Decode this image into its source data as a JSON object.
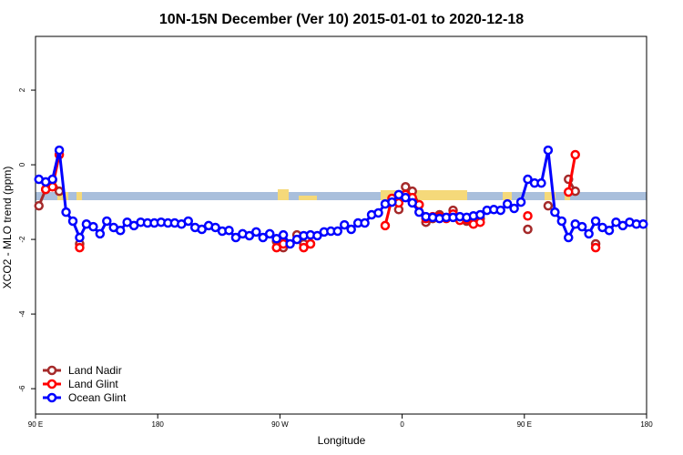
{
  "chart_data": {
    "type": "line",
    "title": "10N-15N December (Ver 10)   2015-01-01 to 2020-12-18",
    "x_label": "Longitude",
    "y_label": "XCO2 - MLO trend (ppm)",
    "x": [
      92.5,
      97.5,
      102.5,
      107.5,
      112.5,
      117.5,
      122.5,
      127.5,
      132.5,
      137.5,
      142.5,
      147.5,
      152.5,
      157.5,
      162.5,
      167.5,
      172.5,
      177.5,
      182.5,
      187.5,
      192.5,
      197.5,
      202.5,
      207.5,
      212.5,
      217.5,
      222.5,
      227.5,
      232.5,
      237.5,
      242.5,
      247.5,
      252.5,
      257.5,
      262.5,
      267.5,
      272.5,
      277.5,
      282.5,
      287.5,
      292.5,
      297.5,
      302.5,
      307.5,
      312.5,
      317.5,
      322.5,
      327.5,
      332.5,
      337.5,
      342.5,
      347.5,
      352.5,
      357.5,
      362.5,
      367.5,
      372.5,
      377.5,
      382.5,
      387.5,
      392.5,
      397.5,
      402.5,
      407.5,
      412.5,
      417.5,
      422.5,
      427.5,
      432.5,
      437.5,
      442.5,
      447.5,
      452.5,
      457.5,
      462.5,
      467.5,
      472.5,
      477.5,
      482.5,
      487.5,
      492.5,
      497.5,
      502.5,
      507.5,
      512.5,
      517.5,
      522.5,
      527.5,
      532.5,
      537.5
    ],
    "series": [
      {
        "name": "Land Nadir",
        "color": "#a52a2a",
        "values": [
          -1.1,
          -0.66,
          -0.41,
          -0.71,
          null,
          null,
          -2.12,
          null,
          null,
          null,
          null,
          null,
          null,
          null,
          null,
          null,
          null,
          null,
          null,
          null,
          null,
          null,
          null,
          null,
          null,
          null,
          null,
          null,
          null,
          null,
          null,
          null,
          null,
          null,
          null,
          -2.05,
          -2.22,
          null,
          -1.88,
          -2.12,
          -2.12,
          null,
          null,
          null,
          null,
          null,
          null,
          null,
          null,
          null,
          null,
          null,
          null,
          -1.2,
          -0.59,
          -0.71,
          -1.07,
          -1.54,
          -1.44,
          -1.34,
          null,
          -1.22,
          null,
          -1.51,
          null,
          -1.44,
          null,
          null,
          null,
          null,
          null,
          null,
          -1.73,
          null,
          null,
          -1.1,
          null,
          null,
          -0.39,
          -0.71,
          null,
          null,
          -2.12,
          null,
          null,
          null,
          null,
          null,
          null,
          null
        ]
      },
      {
        "name": "Land Glint",
        "color": "#ff0000",
        "values": [
          null,
          -0.66,
          -0.59,
          0.27,
          null,
          null,
          -2.22,
          null,
          null,
          null,
          null,
          null,
          null,
          null,
          null,
          null,
          null,
          null,
          null,
          null,
          null,
          null,
          null,
          null,
          null,
          null,
          null,
          null,
          null,
          null,
          null,
          null,
          null,
          null,
          null,
          -2.22,
          -2.12,
          null,
          null,
          -2.22,
          -2.12,
          null,
          null,
          null,
          null,
          null,
          null,
          null,
          null,
          null,
          null,
          -1.63,
          -0.9,
          -1.02,
          -0.8,
          -0.88,
          -1.07,
          -1.44,
          -1.39,
          -1.39,
          -1.44,
          -1.32,
          -1.49,
          -1.46,
          -1.59,
          -1.54,
          null,
          null,
          null,
          null,
          null,
          null,
          -1.37,
          null,
          null,
          null,
          null,
          null,
          -0.73,
          0.27,
          null,
          null,
          -2.22,
          null,
          null,
          null,
          null,
          null,
          null,
          null
        ]
      },
      {
        "name": "Ocean Glint",
        "color": "#0000ff",
        "values": [
          -0.39,
          -0.46,
          -0.39,
          0.39,
          -1.27,
          -1.51,
          -1.95,
          -1.59,
          -1.66,
          -1.85,
          -1.51,
          -1.68,
          -1.76,
          -1.54,
          -1.63,
          -1.54,
          -1.56,
          -1.56,
          -1.54,
          -1.56,
          -1.56,
          -1.59,
          -1.51,
          -1.68,
          -1.73,
          -1.63,
          -1.68,
          -1.78,
          -1.76,
          -1.95,
          -1.85,
          -1.9,
          -1.8,
          -1.95,
          -1.85,
          -1.98,
          -1.88,
          -2.12,
          -2.0,
          -1.9,
          -1.88,
          -1.9,
          -1.8,
          -1.78,
          -1.78,
          -1.61,
          -1.73,
          -1.56,
          -1.56,
          -1.34,
          -1.29,
          -1.05,
          -1.0,
          -0.8,
          -0.88,
          -1.02,
          -1.27,
          -1.39,
          -1.41,
          -1.44,
          -1.41,
          -1.41,
          -1.39,
          -1.41,
          -1.37,
          -1.34,
          -1.22,
          -1.2,
          -1.22,
          -1.05,
          -1.17,
          -1.0,
          -0.39,
          -0.49,
          -0.49,
          0.39,
          -1.27,
          -1.51,
          -1.95,
          -1.59,
          -1.66,
          -1.85,
          -1.51,
          -1.68,
          -1.76,
          -1.54,
          -1.63,
          -1.54,
          -1.59,
          -1.59
        ]
      }
    ],
    "xlim": [
      90,
      540
    ],
    "xticks": [
      {
        "value": 90,
        "label": "90 E"
      },
      {
        "value": 180,
        "label": "180"
      },
      {
        "value": 270,
        "label": "90 W"
      },
      {
        "value": 360,
        "label": "0"
      },
      {
        "value": 450,
        "label": "90 E"
      },
      {
        "value": 540,
        "label": "180"
      }
    ],
    "ylim": [
      -6.68,
      3.44
    ],
    "yticks": [
      -6,
      -4,
      -2,
      0,
      2
    ],
    "legend": "bottomleft"
  }
}
